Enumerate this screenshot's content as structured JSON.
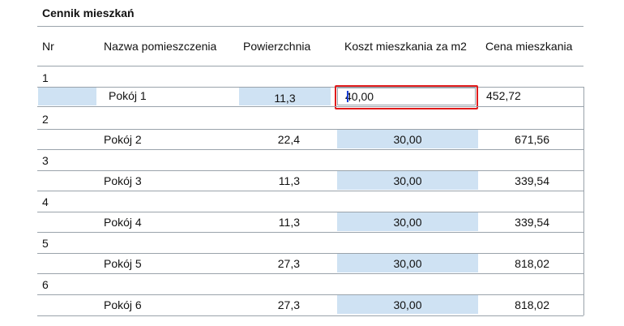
{
  "title": "Cennik mieszkań",
  "headers": {
    "nr": "Nr",
    "name": "Nazwa pomieszczenia",
    "area": "Powierzchnia",
    "cost": "Koszt mieszkania za m2",
    "price": "Cena mieszkania"
  },
  "rows": [
    {
      "nr": "1",
      "name": "Pokój 1",
      "area": "11,3",
      "cost": "40,00",
      "price": "452,72"
    },
    {
      "nr": "2",
      "name": "Pokój 2",
      "area": "22,4",
      "cost": "30,00",
      "price": "671,56"
    },
    {
      "nr": "3",
      "name": "Pokój 3",
      "area": "11,3",
      "cost": "30,00",
      "price": "339,54"
    },
    {
      "nr": "4",
      "name": "Pokój 4",
      "area": "11,3",
      "cost": "30,00",
      "price": "339,54"
    },
    {
      "nr": "5",
      "name": "Pokój 5",
      "area": "27,3",
      "cost": "30,00",
      "price": "818,02"
    },
    {
      "nr": "6",
      "name": "Pokój 6",
      "area": "27,3",
      "cost": "30,00",
      "price": "818,02"
    }
  ],
  "colors": {
    "shade": "#cfe2f3",
    "highlight": "#e01b1b",
    "caret": "#1a3fd6"
  }
}
